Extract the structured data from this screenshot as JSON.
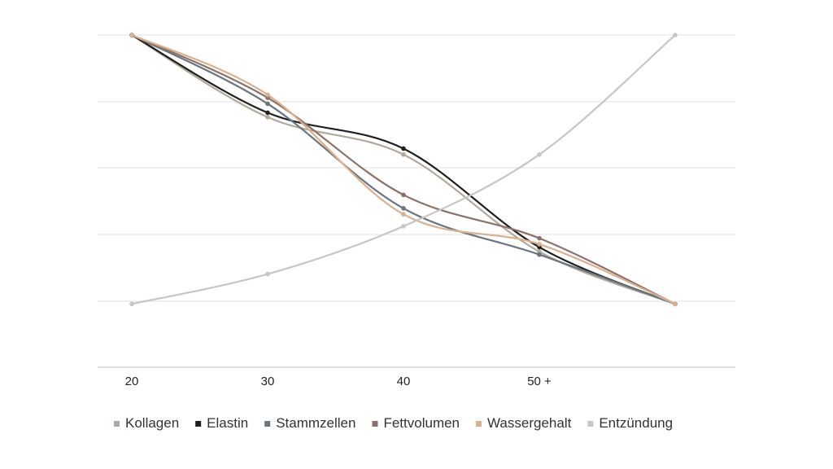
{
  "chart_data": {
    "type": "line",
    "title": "",
    "xlabel": "",
    "ylabel": "",
    "categories": [
      "20",
      "30",
      "40",
      "50 +",
      ""
    ],
    "ylim": [
      0,
      100
    ],
    "grid": true,
    "legend_position": "bottom",
    "series": [
      {
        "name": "Kollagen",
        "color": "#b2a89a",
        "values": [
          100,
          72.5,
          60,
          27.5,
          10
        ]
      },
      {
        "name": "Elastin",
        "color": "#1f1f1f",
        "values": [
          100,
          74,
          62,
          29,
          10
        ]
      },
      {
        "name": "Stammzellen",
        "color": "#6a7580",
        "values": [
          100,
          77,
          42,
          26.5,
          10
        ]
      },
      {
        "name": "Fettvolumen",
        "color": "#8b7168",
        "values": [
          100,
          79,
          46.5,
          32,
          10
        ]
      },
      {
        "name": "Wassergehalt",
        "color": "#dbb08f",
        "values": [
          100,
          80,
          40,
          30,
          10
        ]
      },
      {
        "name": "Entzündung",
        "color": "#c6c6c6",
        "values": [
          10,
          20,
          36,
          60,
          100
        ]
      }
    ]
  }
}
